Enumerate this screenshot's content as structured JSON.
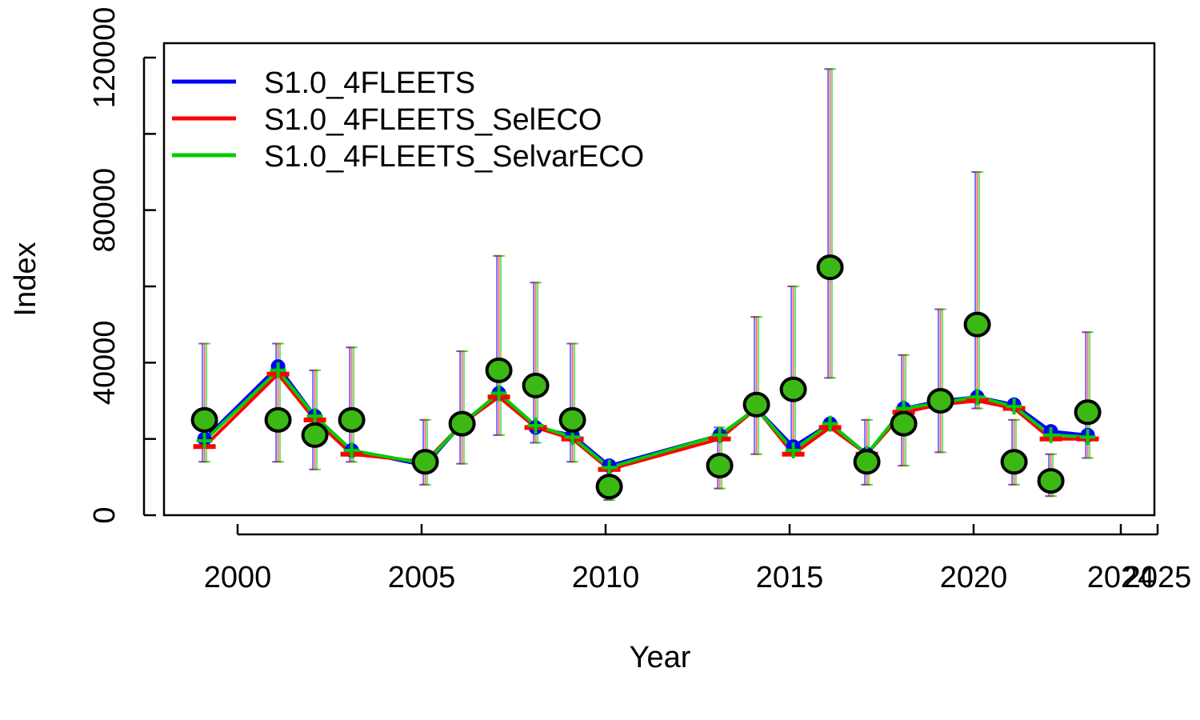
{
  "chart_data": {
    "type": "line",
    "xlabel": "Year",
    "ylabel": "Index",
    "xlim": [
      1998,
      2026
    ],
    "ylim": [
      0,
      124000
    ],
    "x_ticks": [
      "2000",
      "2005",
      "2010",
      "2015",
      "2020",
      "2024",
      "2025"
    ],
    "x_tick_values": [
      2000,
      2005,
      2010,
      2015,
      2020,
      2024,
      2025
    ],
    "y_ticks": [
      "0",
      "40000",
      "80000",
      "120000"
    ],
    "y_tick_values": [
      0,
      20000,
      40000,
      60000,
      80000,
      100000,
      120000
    ],
    "legend_position": "top-left",
    "series": [
      {
        "name": "S1.0_4FLEETS",
        "color": "#0000ff",
        "x": [
          1999.1,
          2001.1,
          2002.1,
          2003.1,
          2005.1,
          2006.1,
          2007.1,
          2008.1,
          2009.1,
          2010.1,
          2013.1,
          2014.1,
          2015.1,
          2016.1,
          2017.1,
          2018.1,
          2019.1,
          2020.1,
          2021.1,
          2022.1,
          2023.1
        ],
        "values": [
          20000,
          39000,
          26000,
          17000,
          13000,
          24000,
          32000,
          23000,
          21000,
          13000,
          21000,
          28000,
          18000,
          24000,
          16000,
          28000,
          30000,
          31000,
          29000,
          22000,
          21000
        ]
      },
      {
        "name": "S1.0_4FLEETS_SelECO",
        "color": "#ff0000",
        "x": [
          1999.1,
          2001.1,
          2002.1,
          2003.1,
          2005.1,
          2006.1,
          2007.1,
          2008.1,
          2009.1,
          2010.1,
          2013.1,
          2014.1,
          2015.1,
          2016.1,
          2017.1,
          2018.1,
          2019.1,
          2020.1,
          2021.1,
          2022.1,
          2023.1
        ],
        "values": [
          18000,
          37000,
          25000,
          16000,
          14000,
          24000,
          31000,
          23000,
          20000,
          12000,
          20000,
          28000,
          16000,
          23000,
          16000,
          27000,
          29000,
          30000,
          28000,
          20000,
          20000
        ]
      },
      {
        "name": "S1.0_4FLEETS_SelvarECO",
        "color": "#00cd00",
        "x": [
          1999.1,
          2001.1,
          2002.1,
          2003.1,
          2005.1,
          2006.1,
          2007.1,
          2008.1,
          2009.1,
          2010.1,
          2013.1,
          2014.1,
          2015.1,
          2016.1,
          2017.1,
          2018.1,
          2019.1,
          2020.1,
          2021.1,
          2022.1,
          2023.1
        ],
        "values": [
          19500,
          38000,
          26000,
          17000,
          13500,
          24000,
          32000,
          23500,
          20500,
          12500,
          21000,
          28000,
          17000,
          24000,
          16000,
          28000,
          29500,
          31000,
          28500,
          21000,
          20500
        ]
      }
    ],
    "observed": {
      "point_color": "#3cb814",
      "x": [
        1999.1,
        2001.1,
        2002.1,
        2003.1,
        2005.1,
        2006.1,
        2007.1,
        2008.1,
        2009.1,
        2010.1,
        2013.1,
        2014.1,
        2015.1,
        2016.1,
        2017.1,
        2018.1,
        2019.1,
        2020.1,
        2021.1,
        2022.1,
        2023.1
      ],
      "values": [
        25000,
        25000,
        21000,
        25000,
        14000,
        24000,
        38000,
        34000,
        25000,
        7500,
        13000,
        29000,
        33000,
        65000,
        14000,
        24000,
        30000,
        50000,
        14000,
        9000,
        27000
      ],
      "lower": [
        14000,
        14000,
        12000,
        14000,
        8000,
        13500,
        21000,
        19000,
        14000,
        4000,
        7000,
        16000,
        17000,
        36000,
        8000,
        13000,
        16500,
        28000,
        8000,
        5000,
        15000
      ],
      "upper": [
        45000,
        45000,
        38000,
        44000,
        25000,
        43000,
        68000,
        61000,
        45000,
        13000,
        23000,
        52000,
        60000,
        117000,
        25000,
        42000,
        54000,
        90000,
        25000,
        16000,
        48000
      ]
    }
  }
}
